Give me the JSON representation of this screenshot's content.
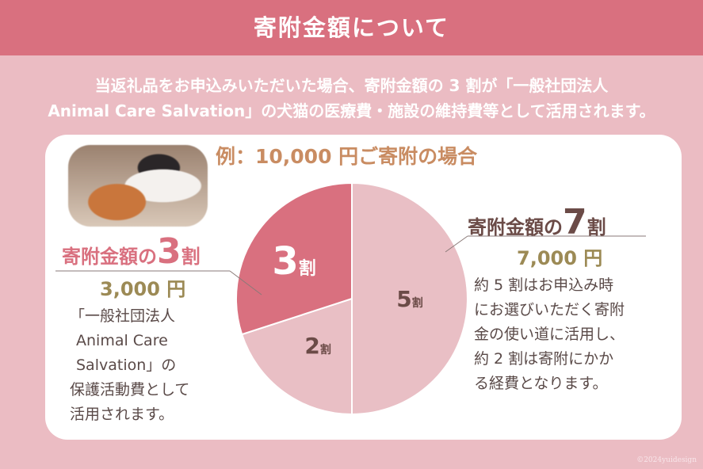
{
  "header": {
    "title": "寄附金額について"
  },
  "intro": {
    "line1": "当返礼品をお申込みいただいた場合、寄附金額の 3 割が「一般社団法人",
    "line2": "Animal Care Salvation」の犬猫の医療費・施設の維持費等として活用されます。"
  },
  "example": "例：10,000 円ご寄附の場合",
  "left": {
    "head_prefix": "寄附金額の",
    "head_num": "3",
    "head_suffix": "割",
    "amount": "3,000 円",
    "body": [
      "「一般社団法人",
      "Animal Care",
      "Salvation」の",
      "保護活動費として",
      "活用されます。"
    ]
  },
  "right": {
    "head_prefix": "寄附金額の",
    "head_num": "7",
    "head_suffix": "割",
    "amount": "7,000 円",
    "body": [
      "約 5 割はお申込み時",
      "にお選びいただく寄附",
      "金の使い道に活用し、",
      "約 2 割は寄附にかか",
      "る経費となります。"
    ]
  },
  "copyright": "©2024yuidesign",
  "chart_data": {
    "type": "pie",
    "unit": "割",
    "slices": [
      {
        "label": "5",
        "value": 5,
        "color": "#e9bfc5"
      },
      {
        "label": "2",
        "value": 2,
        "color": "#e9bfc5"
      },
      {
        "label": "3",
        "value": 3,
        "color": "#d9707f"
      }
    ]
  }
}
